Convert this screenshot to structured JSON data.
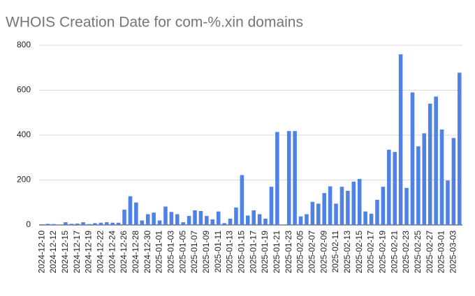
{
  "chart_data": {
    "type": "bar",
    "title": "WHOIS Creation Date for com-%.xin domains",
    "categories": [
      "2024-12-10",
      null,
      "2024-12-12",
      null,
      "2024-12-15",
      null,
      "2024-12-17",
      null,
      "2024-12-19",
      null,
      "2024-12-22",
      null,
      "2024-12-24",
      null,
      "2024-12-26",
      null,
      "2024-12-28",
      null,
      "2024-12-30",
      null,
      "2025-01-01",
      null,
      "2025-01-03",
      null,
      "2025-01-05",
      null,
      "2025-01-07",
      null,
      "2025-01-09",
      null,
      "2025-01-11",
      null,
      "2025-01-13",
      null,
      "2025-01-15",
      null,
      "2025-01-17",
      null,
      "2025-01-19",
      null,
      "2025-01-21",
      null,
      "2025-01-23",
      null,
      "2025-02-05",
      null,
      "2025-02-07",
      null,
      "2025-02-09",
      null,
      "2025-02-11",
      null,
      "2025-02-13",
      null,
      "2025-02-15",
      null,
      "2025-02-17",
      null,
      "2025-02-19",
      null,
      "2025-02-21",
      null,
      "2025-02-23",
      null,
      "2025-02-25",
      null,
      "2025-02-27",
      null,
      "2025-03-01",
      null,
      "2025-03-03",
      null
    ],
    "values": [
      3,
      5,
      4,
      2,
      12,
      5,
      6,
      12,
      4,
      8,
      10,
      12,
      10,
      10,
      68,
      128,
      100,
      20,
      48,
      55,
      20,
      82,
      58,
      48,
      12,
      40,
      65,
      62,
      40,
      25,
      60,
      8,
      28,
      78,
      222,
      42,
      65,
      48,
      28,
      170,
      414,
      2,
      418,
      418,
      38,
      48,
      103,
      95,
      142,
      172,
      95,
      170,
      152,
      193,
      205,
      60,
      50,
      112,
      170,
      335,
      325,
      760,
      165,
      590,
      350,
      408,
      540,
      572,
      425,
      198,
      387,
      678
    ],
    "color": "#4f81e6",
    "ylim": [
      0,
      800
    ],
    "yticks": [
      0,
      200,
      400,
      600,
      800
    ],
    "grid": true
  }
}
